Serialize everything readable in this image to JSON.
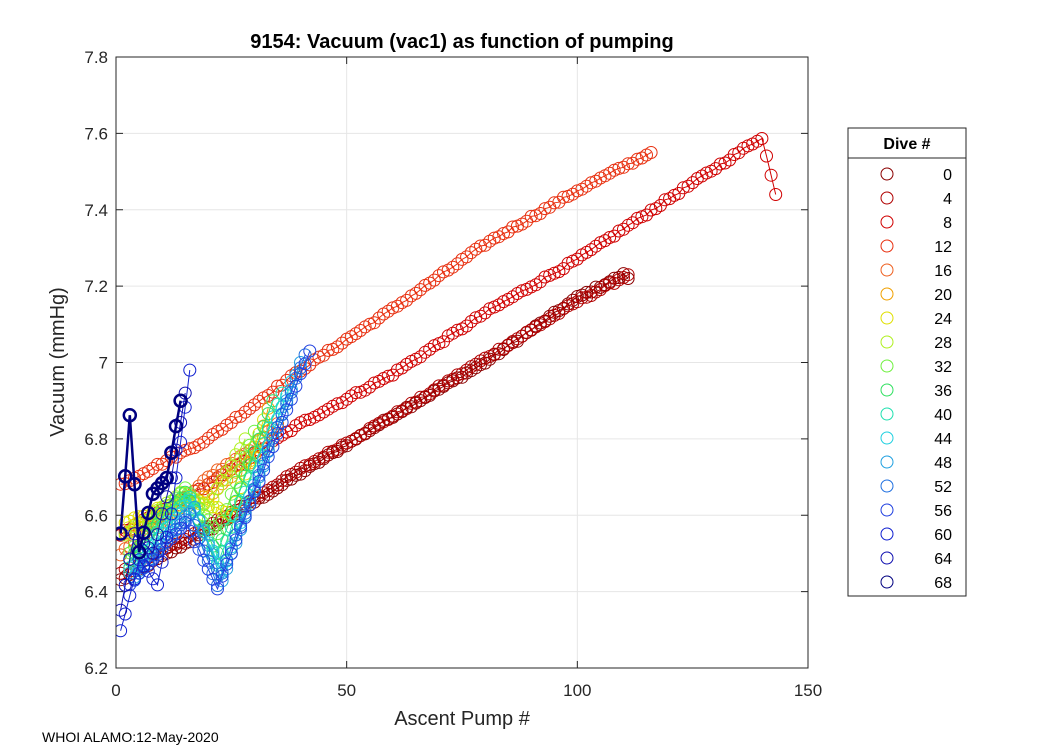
{
  "chart_data": {
    "type": "scatter",
    "title": "9154: Vacuum (vac1) as function of pumping",
    "xlabel": "Ascent Pump #",
    "ylabel": "Vacuum (mmHg)",
    "xlim": [
      0,
      150
    ],
    "ylim": [
      6.2,
      7.8
    ],
    "xticks": [
      "0",
      "50",
      "100",
      "150"
    ],
    "yticks": [
      "6.2",
      "6.4",
      "6.6",
      "6.8",
      "7",
      "7.2",
      "7.4",
      "7.6",
      "7.8"
    ],
    "grid": true,
    "legend": {
      "title": "Dive #",
      "position": "right",
      "entries": [
        "0",
        "4",
        "8",
        "12",
        "16",
        "20",
        "24",
        "28",
        "32",
        "36",
        "40",
        "44",
        "48",
        "52",
        "56",
        "60",
        "64",
        "68"
      ],
      "colors": [
        "#8b0000",
        "#b00000",
        "#d00000",
        "#e83010",
        "#ee6020",
        "#f0a000",
        "#e0e000",
        "#b0f020",
        "#70f040",
        "#30e060",
        "#20e0b0",
        "#20d0e0",
        "#20a0e0",
        "#2070e0",
        "#2040e0",
        "#1020d0",
        "#1010b0",
        "#000080"
      ]
    },
    "series": [
      {
        "name": "0",
        "x": [
          1,
          20,
          40,
          60,
          80,
          100,
          110,
          111
        ],
        "y": [
          6.43,
          6.56,
          6.71,
          6.86,
          7.0,
          7.17,
          7.23,
          7.22
        ]
      },
      {
        "name": "4",
        "x": [
          1,
          20,
          40,
          60,
          80,
          100,
          111
        ],
        "y": [
          6.45,
          6.57,
          6.72,
          6.86,
          7.01,
          7.16,
          7.23
        ]
      },
      {
        "name": "8",
        "x": [
          1,
          20,
          40,
          60,
          80,
          100,
          120,
          140,
          143
        ],
        "y": [
          6.55,
          6.68,
          6.84,
          6.97,
          7.13,
          7.27,
          7.43,
          7.59,
          7.44
        ]
      },
      {
        "name": "12",
        "x": [
          1,
          20,
          40,
          60,
          80,
          100,
          116
        ],
        "y": [
          6.68,
          6.8,
          6.98,
          7.14,
          7.31,
          7.45,
          7.55
        ]
      },
      {
        "name": "16",
        "x": [
          1,
          10,
          20,
          30,
          35
        ],
        "y": [
          6.5,
          6.58,
          6.7,
          6.78,
          6.84
        ]
      },
      {
        "name": "20",
        "x": [
          2,
          10,
          20,
          30,
          33
        ],
        "y": [
          6.55,
          6.6,
          6.65,
          6.75,
          6.88
        ]
      },
      {
        "name": "24",
        "x": [
          2,
          10,
          18,
          25,
          32
        ],
        "y": [
          6.58,
          6.62,
          6.64,
          6.6,
          6.85
        ]
      },
      {
        "name": "28",
        "x": [
          2,
          8,
          14,
          20,
          28
        ],
        "y": [
          6.55,
          6.6,
          6.66,
          6.62,
          6.8
        ]
      },
      {
        "name": "32",
        "x": [
          3,
          9,
          15,
          22,
          30
        ],
        "y": [
          6.5,
          6.6,
          6.67,
          6.55,
          6.82
        ]
      },
      {
        "name": "36",
        "x": [
          3,
          9,
          15,
          22,
          34
        ],
        "y": [
          6.48,
          6.58,
          6.66,
          6.5,
          6.9
        ]
      },
      {
        "name": "40",
        "x": [
          3,
          10,
          16,
          22,
          36
        ],
        "y": [
          6.46,
          6.57,
          6.65,
          6.47,
          6.92
        ]
      },
      {
        "name": "44",
        "x": [
          3,
          10,
          16,
          23,
          38
        ],
        "y": [
          6.45,
          6.55,
          6.64,
          6.45,
          6.95
        ]
      },
      {
        "name": "48",
        "x": [
          4,
          11,
          17,
          23,
          40
        ],
        "y": [
          6.44,
          6.54,
          6.62,
          6.43,
          7.0
        ]
      },
      {
        "name": "52",
        "x": [
          4,
          10,
          16,
          22,
          41
        ],
        "y": [
          6.43,
          6.52,
          6.6,
          6.42,
          7.02
        ]
      },
      {
        "name": "56",
        "x": [
          3,
          9,
          15,
          22,
          42
        ],
        "y": [
          6.42,
          6.5,
          6.58,
          6.41,
          7.03
        ]
      },
      {
        "name": "60",
        "x": [
          1,
          5,
          9,
          12,
          16
        ],
        "y": [
          6.3,
          6.48,
          6.42,
          6.6,
          6.98
        ]
      },
      {
        "name": "64",
        "x": [
          1,
          4,
          8,
          12,
          15
        ],
        "y": [
          6.35,
          6.55,
          6.5,
          6.7,
          6.92
        ]
      },
      {
        "name": "68",
        "x": [
          1,
          3,
          5,
          8,
          11,
          14
        ],
        "y": [
          6.55,
          6.86,
          6.5,
          6.66,
          6.7,
          6.9
        ]
      }
    ]
  },
  "footer": "WHOI ALAMO:12-May-2020"
}
